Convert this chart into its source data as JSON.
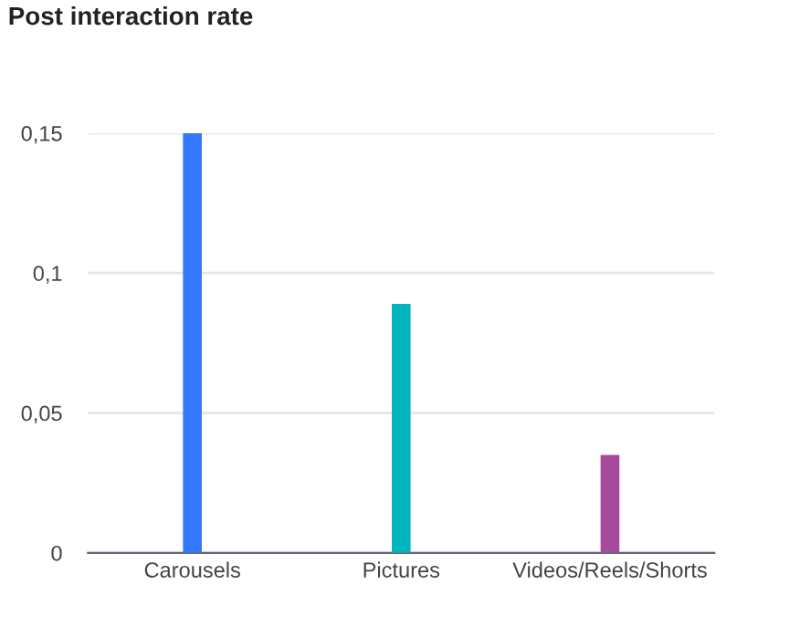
{
  "chart_data": {
    "type": "bar",
    "title": "Post interaction rate",
    "categories": [
      "Carousels",
      "Pictures",
      "Videos/Reels/Shorts"
    ],
    "values": [
      0.15,
      0.089,
      0.035
    ],
    "colors": [
      "#3377ff",
      "#00b5bd",
      "#a64a9c"
    ],
    "ylim": [
      0,
      0.15
    ],
    "yticks": [
      0,
      {
        "value": 0.05,
        "label": "0,05"
      },
      {
        "value": 0.1,
        "label": "0,1"
      },
      {
        "value": 0.15,
        "label": "0,15"
      }
    ],
    "grid": "y"
  }
}
